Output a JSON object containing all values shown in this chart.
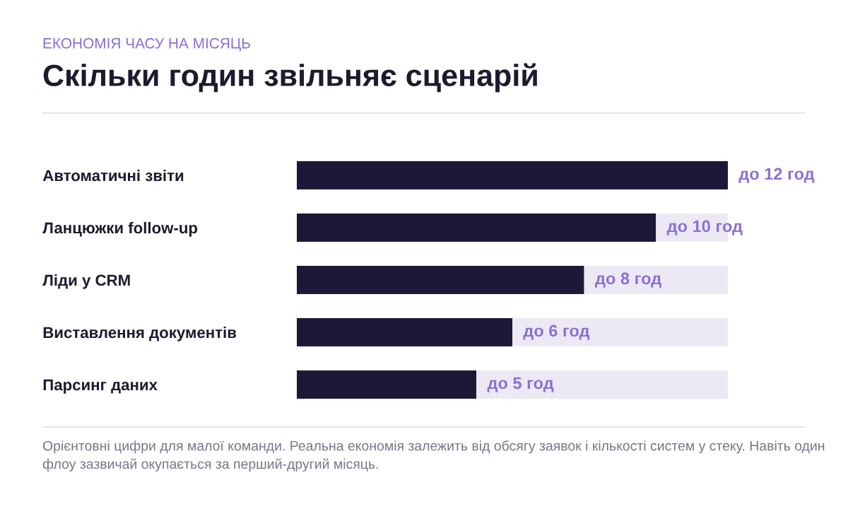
{
  "chart_data": {
    "type": "bar",
    "orientation": "horizontal",
    "subtitle": "ЕКОНОМІЯ ЧАСУ НА МІСЯЦЬ",
    "title": "Скільки годин звільняє сценарій",
    "categories": [
      "Автоматичні звіти",
      "Ланцюжки follow-up",
      "Ліди у CRM",
      "Виставлення документів",
      "Парсинг даних"
    ],
    "stacked": true,
    "series": [
      {
        "color": "#1e1838",
        "values": [
          12,
          10,
          8,
          6,
          5
        ],
        "value_labels": [
          "до 12 год",
          "до 10 год",
          "до 8 год",
          "до 6 год",
          "до 5 год"
        ]
      },
      {
        "color": "#ece9f5",
        "values": [
          null,
          2,
          4,
          6,
          7
        ]
      }
    ],
    "xlim": [
      0,
      12
    ],
    "tick_labels": "y",
    "grid": false,
    "legend": false,
    "annotations": [
      "Орієнтовні цифри для малої команди. Реальна економія залежить від обсягу заявок і кількості систем у стеку. Навіть один флоу зазвичай окупається за перший-другий місяць."
    ]
  }
}
